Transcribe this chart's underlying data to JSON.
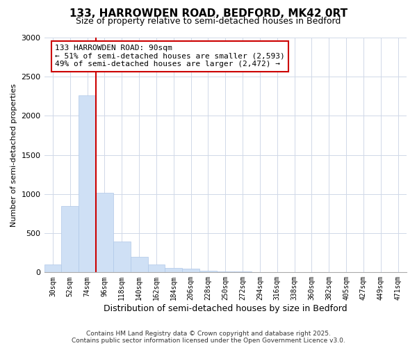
{
  "title_line1": "133, HARROWDEN ROAD, BEDFORD, MK42 0RT",
  "title_line2": "Size of property relative to semi-detached houses in Bedford",
  "xlabel": "Distribution of semi-detached houses by size in Bedford",
  "ylabel": "Number of semi-detached properties",
  "footer_line1": "Contains HM Land Registry data © Crown copyright and database right 2025.",
  "footer_line2": "Contains public sector information licensed under the Open Government Licence v3.0.",
  "annotation_title": "133 HARROWDEN ROAD: 90sqm",
  "annotation_line1": "← 51% of semi-detached houses are smaller (2,593)",
  "annotation_line2": "49% of semi-detached houses are larger (2,472) →",
  "bar_labels": [
    "30sqm",
    "52sqm",
    "74sqm",
    "96sqm",
    "118sqm",
    "140sqm",
    "162sqm",
    "184sqm",
    "206sqm",
    "228sqm",
    "250sqm",
    "272sqm",
    "294sqm",
    "316sqm",
    "338sqm",
    "360sqm",
    "382sqm",
    "405sqm",
    "427sqm",
    "449sqm",
    "471sqm"
  ],
  "bar_values": [
    105,
    845,
    2260,
    1020,
    390,
    200,
    105,
    60,
    45,
    25,
    10,
    8,
    5,
    3,
    2,
    1,
    1,
    0,
    0,
    0,
    0
  ],
  "bar_color": "#cfe0f5",
  "bar_edge_color": "#b0c8e8",
  "vline_color": "#cc0000",
  "vline_x": 2.5,
  "annotation_box_color": "#cc0000",
  "ylim": [
    0,
    3000
  ],
  "yticks": [
    0,
    500,
    1000,
    1500,
    2000,
    2500,
    3000
  ],
  "background_color": "#ffffff",
  "plot_bg_color": "#ffffff",
  "grid_color": "#d0d8e8",
  "title1_fontsize": 11,
  "title2_fontsize": 9,
  "annotation_fontsize": 8,
  "footer_fontsize": 6.5
}
